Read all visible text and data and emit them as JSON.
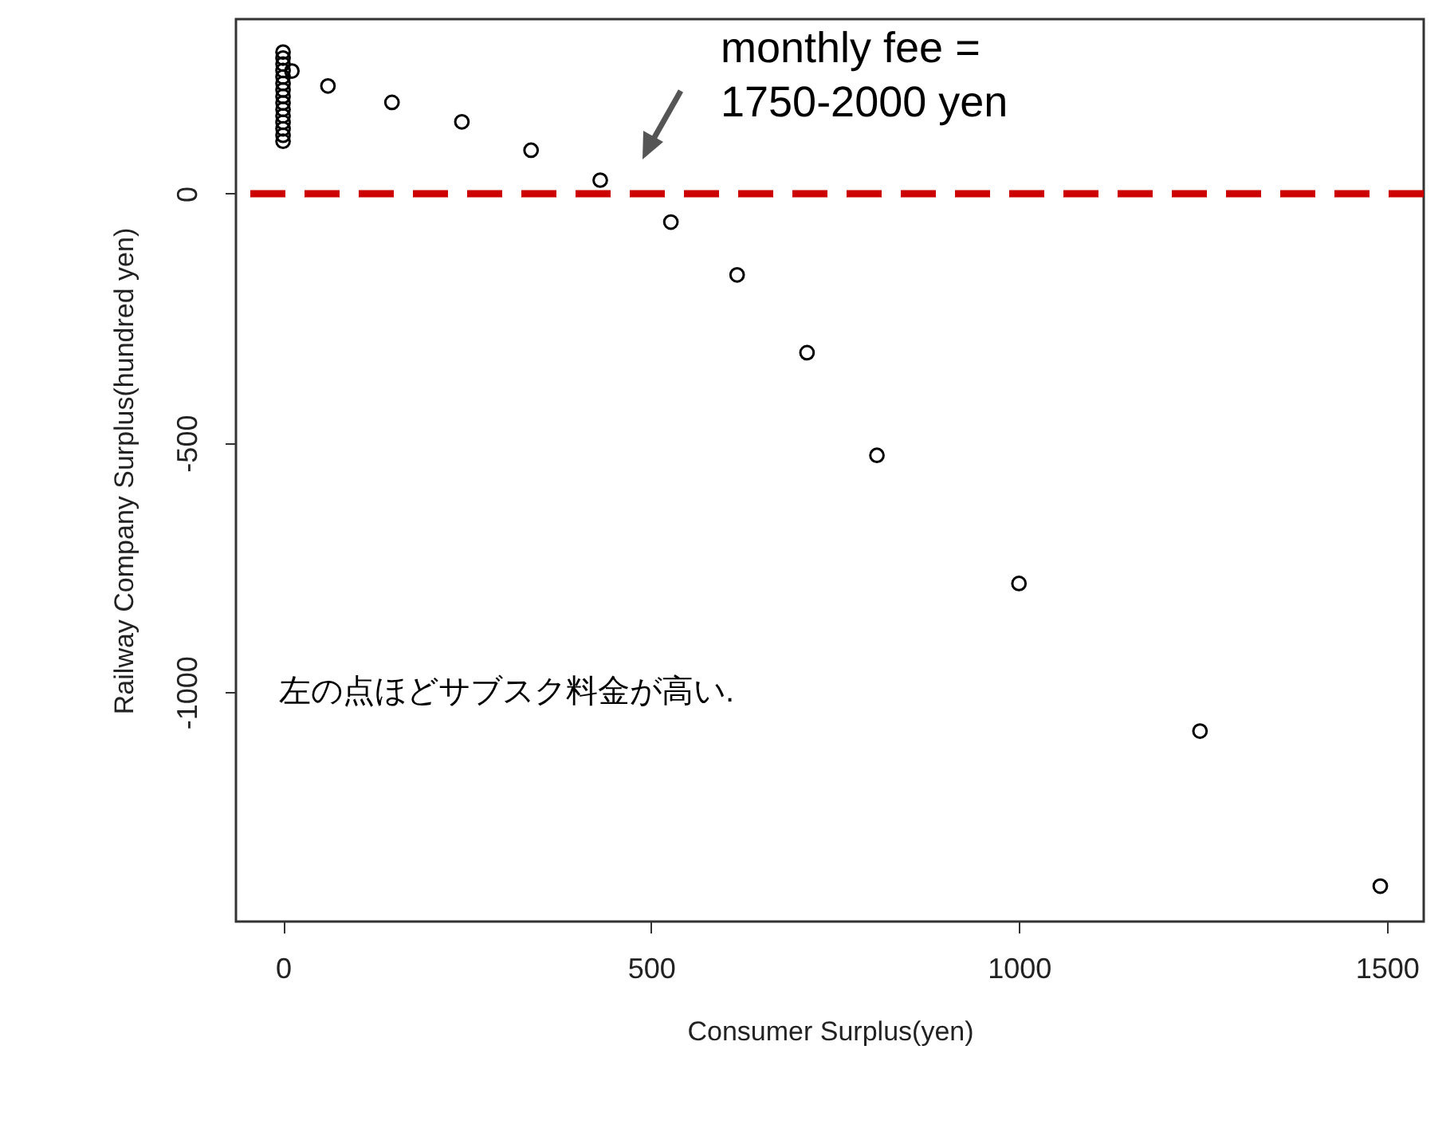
{
  "chart_data": {
    "type": "scatter",
    "xlabel": "Consumer Surplus(yen)",
    "ylabel": "Railway Company Surplus(hundred yen)",
    "xlim": [
      -64,
      1550
    ],
    "ylim": [
      -1460,
      350
    ],
    "xticks": [
      0,
      500,
      1000,
      1500
    ],
    "yticks": [
      -1000,
      -500,
      0
    ],
    "marker": "circle",
    "grid": false,
    "series": [
      {
        "color": "#000000",
        "x": [
          0,
          0,
          0,
          0,
          0,
          0,
          0,
          0,
          0,
          0,
          0,
          0,
          0,
          0,
          0,
          12,
          61,
          148,
          243,
          337,
          431,
          527,
          617,
          712,
          807,
          1000,
          1246,
          1491
        ],
        "values": [
          105,
          117,
          130,
          143,
          156,
          169,
          182,
          195,
          208,
          221,
          234,
          247,
          260,
          272,
          284,
          246,
          216,
          183,
          144,
          87,
          27,
          -57,
          -163,
          -319,
          -525,
          -782,
          -1078,
          -1389
        ]
      }
    ],
    "ref_lines": [
      {
        "axis": "y",
        "value": 0,
        "color": "#cc0000",
        "line_style": "dashed"
      }
    ],
    "annotations": [
      "monthly fee =\n1750-2000 yen",
      "左の点ほどサブスク料金が高い."
    ]
  }
}
